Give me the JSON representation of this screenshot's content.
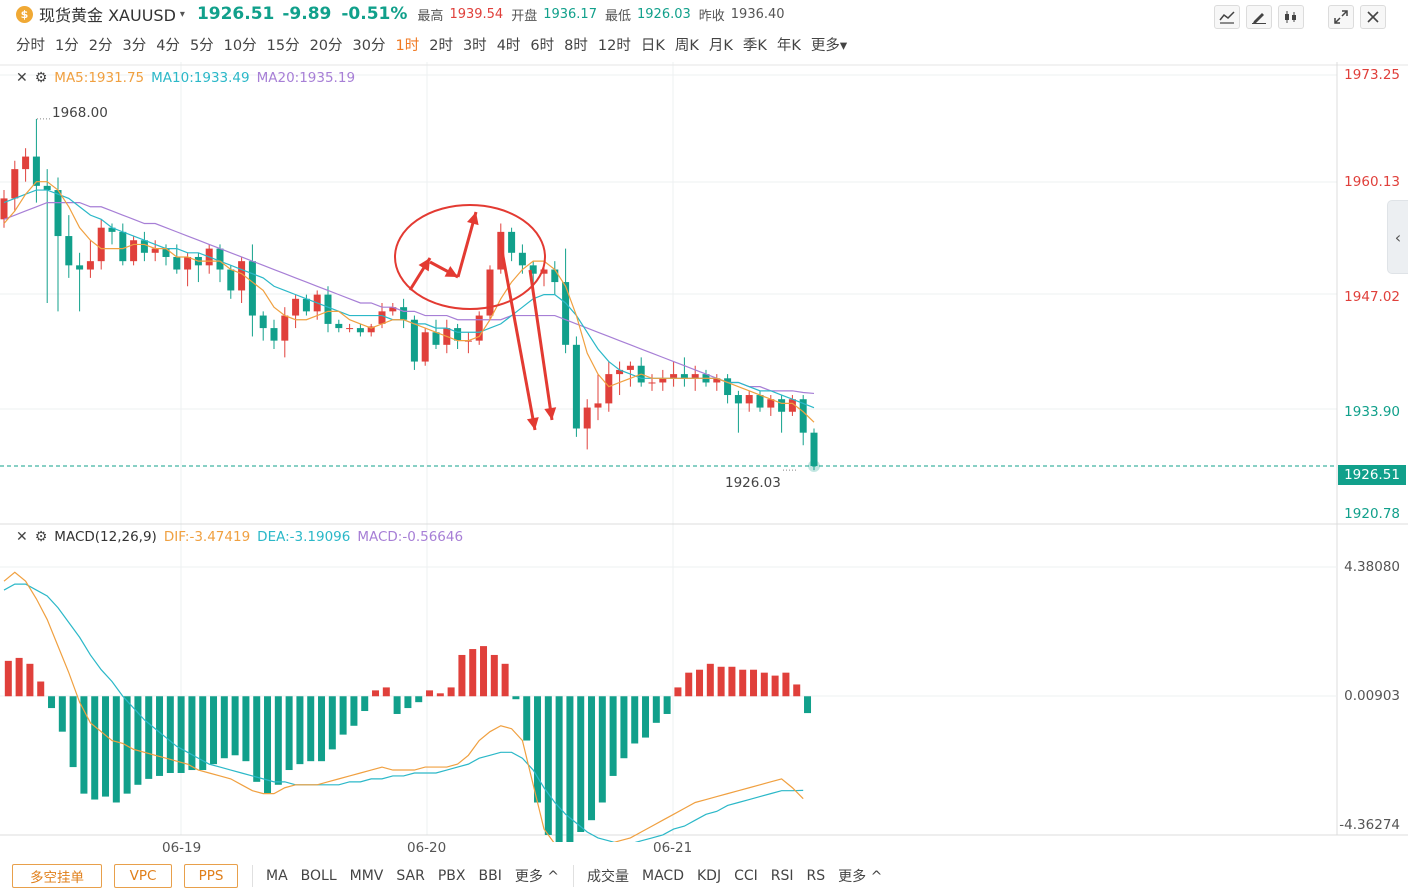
{
  "header": {
    "logo_char": "$",
    "symbol_name": "现货黄金 XAUUSD",
    "caret": "▾",
    "price": "1926.51",
    "change": "-9.89",
    "change_pct": "-0.51%",
    "high_label": "最高",
    "high": "1939.54",
    "open_label": "开盘",
    "open": "1936.17",
    "low_label": "最低",
    "low": "1926.03",
    "prev_close_label": "昨收",
    "prev_close": "1936.40",
    "tools": [
      "line-chart-icon",
      "draw-pen-icon",
      "candlestick-icon",
      "fullscreen-icon",
      "close-icon"
    ]
  },
  "timeframes": [
    "分时",
    "1分",
    "2分",
    "3分",
    "4分",
    "5分",
    "10分",
    "15分",
    "20分",
    "30分",
    "1时",
    "2时",
    "3时",
    "4时",
    "6时",
    "8时",
    "12时",
    "日K",
    "周K",
    "月K",
    "季K",
    "年K",
    "更多▾"
  ],
  "active_timeframe": "1时",
  "main_legend": {
    "ma5": "MA5:1931.75",
    "ma10": "MA10:1933.49",
    "ma20": "MA20:1935.19"
  },
  "macd_legend": {
    "name": "MACD(12,26,9)",
    "dif": "DIF:-3.47419",
    "dea": "DEA:-3.19096",
    "macd": "MACD:-0.56646"
  },
  "price_axis": [
    "1973.25",
    "1960.13",
    "1947.02",
    "1933.90",
    "1920.78"
  ],
  "current_price_tag": "1926.51",
  "macd_axis": [
    "4.38080",
    "0.00903",
    "-4.36274"
  ],
  "max_label": "1968.00",
  "min_label": "1926.03",
  "x_axis": [
    "06-19",
    "06-20",
    "06-21"
  ],
  "bottom": {
    "buttons": [
      "多空挂单",
      "VPC",
      "PPS"
    ],
    "main_indicators": [
      "MA",
      "BOLL",
      "MMV",
      "SAR",
      "PBX",
      "BBI",
      "更多 ^"
    ],
    "sub_indicators": [
      "成交量",
      "MACD",
      "KDJ",
      "CCI",
      "RSI",
      "RS",
      "更多 ^"
    ]
  },
  "colors": {
    "up": "#e0403b",
    "down": "#11a08b",
    "ma5": "#f0a040",
    "ma10": "#2bb8c8",
    "ma20": "#a77fd6",
    "accent": "#f07a23"
  },
  "chart_data": {
    "type": "candlestick",
    "x_labels": [
      "06-19",
      "06-20",
      "06-21"
    ],
    "ylim": [
      1920.78,
      1973.25
    ],
    "candles": [
      {
        "o": 1956.0,
        "h": 1959.5,
        "l": 1955.0,
        "c": 1958.5
      },
      {
        "o": 1958.5,
        "h": 1963.0,
        "l": 1957.0,
        "c": 1962.0
      },
      {
        "o": 1962.0,
        "h": 1964.5,
        "l": 1960.5,
        "c": 1963.5
      },
      {
        "o": 1963.5,
        "h": 1968.0,
        "l": 1958.0,
        "c": 1960.0
      },
      {
        "o": 1960.0,
        "h": 1962.0,
        "l": 1946.0,
        "c": 1959.5
      },
      {
        "o": 1959.5,
        "h": 1961.0,
        "l": 1945.0,
        "c": 1954.0
      },
      {
        "o": 1954.0,
        "h": 1956.5,
        "l": 1949.0,
        "c": 1950.5
      },
      {
        "o": 1950.5,
        "h": 1952.0,
        "l": 1945.0,
        "c": 1950.0
      },
      {
        "o": 1950.0,
        "h": 1953.5,
        "l": 1949.0,
        "c": 1951.0
      },
      {
        "o": 1951.0,
        "h": 1956.0,
        "l": 1950.0,
        "c": 1955.0
      },
      {
        "o": 1955.0,
        "h": 1955.5,
        "l": 1953.0,
        "c": 1954.5
      },
      {
        "o": 1954.5,
        "h": 1955.5,
        "l": 1950.5,
        "c": 1951.0
      },
      {
        "o": 1951.0,
        "h": 1954.0,
        "l": 1950.5,
        "c": 1953.5
      },
      {
        "o": 1953.5,
        "h": 1954.5,
        "l": 1951.0,
        "c": 1952.0
      },
      {
        "o": 1952.0,
        "h": 1953.5,
        "l": 1951.0,
        "c": 1952.5
      },
      {
        "o": 1952.5,
        "h": 1953.0,
        "l": 1950.5,
        "c": 1951.5
      },
      {
        "o": 1951.5,
        "h": 1953.0,
        "l": 1949.5,
        "c": 1950.0
      },
      {
        "o": 1950.0,
        "h": 1952.0,
        "l": 1948.0,
        "c": 1951.5
      },
      {
        "o": 1951.5,
        "h": 1952.0,
        "l": 1948.5,
        "c": 1950.5
      },
      {
        "o": 1950.5,
        "h": 1953.0,
        "l": 1949.5,
        "c": 1952.5
      },
      {
        "o": 1952.5,
        "h": 1953.0,
        "l": 1948.5,
        "c": 1950.0
      },
      {
        "o": 1950.0,
        "h": 1950.5,
        "l": 1946.5,
        "c": 1947.5
      },
      {
        "o": 1947.5,
        "h": 1951.5,
        "l": 1946.0,
        "c": 1951.0
      },
      {
        "o": 1951.0,
        "h": 1953.0,
        "l": 1942.0,
        "c": 1944.5
      },
      {
        "o": 1944.5,
        "h": 1945.0,
        "l": 1941.5,
        "c": 1943.0
      },
      {
        "o": 1943.0,
        "h": 1944.0,
        "l": 1940.5,
        "c": 1941.5
      },
      {
        "o": 1941.5,
        "h": 1945.5,
        "l": 1939.5,
        "c": 1944.5
      },
      {
        "o": 1944.5,
        "h": 1947.0,
        "l": 1943.0,
        "c": 1946.5
      },
      {
        "o": 1946.5,
        "h": 1947.0,
        "l": 1944.5,
        "c": 1945.0
      },
      {
        "o": 1945.0,
        "h": 1947.5,
        "l": 1944.0,
        "c": 1947.0
      },
      {
        "o": 1947.0,
        "h": 1948.0,
        "l": 1942.5,
        "c": 1943.5
      },
      {
        "o": 1943.5,
        "h": 1944.0,
        "l": 1942.5,
        "c": 1943.0
      },
      {
        "o": 1943.0,
        "h": 1943.5,
        "l": 1942.5,
        "c": 1943.0
      },
      {
        "o": 1943.0,
        "h": 1943.5,
        "l": 1942.0,
        "c": 1942.5
      },
      {
        "o": 1942.5,
        "h": 1943.5,
        "l": 1942.0,
        "c": 1943.2
      },
      {
        "o": 1943.5,
        "h": 1946.0,
        "l": 1943.0,
        "c": 1945.0
      },
      {
        "o": 1945.0,
        "h": 1946.0,
        "l": 1944.5,
        "c": 1945.5
      },
      {
        "o": 1945.5,
        "h": 1946.5,
        "l": 1943.0,
        "c": 1944.0
      },
      {
        "o": 1944.0,
        "h": 1944.5,
        "l": 1938.0,
        "c": 1939.0
      },
      {
        "o": 1939.0,
        "h": 1943.0,
        "l": 1938.5,
        "c": 1942.5
      },
      {
        "o": 1942.5,
        "h": 1944.0,
        "l": 1940.5,
        "c": 1941.0
      },
      {
        "o": 1941.0,
        "h": 1944.0,
        "l": 1940.0,
        "c": 1943.0
      },
      {
        "o": 1943.0,
        "h": 1943.5,
        "l": 1940.5,
        "c": 1941.5
      },
      {
        "o": 1941.5,
        "h": 1942.5,
        "l": 1940.0,
        "c": 1941.5
      },
      {
        "o": 1941.5,
        "h": 1945.0,
        "l": 1941.0,
        "c": 1944.5
      },
      {
        "o": 1944.5,
        "h": 1950.5,
        "l": 1944.0,
        "c": 1950.0
      },
      {
        "o": 1950.0,
        "h": 1955.5,
        "l": 1949.5,
        "c": 1954.5
      },
      {
        "o": 1954.5,
        "h": 1955.0,
        "l": 1951.0,
        "c": 1952.0
      },
      {
        "o": 1952.0,
        "h": 1953.0,
        "l": 1949.5,
        "c": 1950.5
      },
      {
        "o": 1950.5,
        "h": 1951.0,
        "l": 1947.5,
        "c": 1949.5
      },
      {
        "o": 1949.5,
        "h": 1951.0,
        "l": 1948.0,
        "c": 1950.0
      },
      {
        "o": 1950.0,
        "h": 1951.0,
        "l": 1947.0,
        "c": 1948.5
      },
      {
        "o": 1948.5,
        "h": 1952.5,
        "l": 1940.0,
        "c": 1941.0
      },
      {
        "o": 1941.0,
        "h": 1942.0,
        "l": 1930.0,
        "c": 1931.0
      },
      {
        "o": 1931.0,
        "h": 1934.5,
        "l": 1928.5,
        "c": 1933.5
      },
      {
        "o": 1933.5,
        "h": 1937.5,
        "l": 1932.0,
        "c": 1934.0
      },
      {
        "o": 1934.0,
        "h": 1939.0,
        "l": 1933.0,
        "c": 1937.5
      },
      {
        "o": 1937.5,
        "h": 1939.0,
        "l": 1935.0,
        "c": 1938.0
      },
      {
        "o": 1938.0,
        "h": 1939.0,
        "l": 1936.0,
        "c": 1938.5
      },
      {
        "o": 1938.5,
        "h": 1939.5,
        "l": 1936.0,
        "c": 1936.5
      },
      {
        "o": 1936.5,
        "h": 1937.5,
        "l": 1935.5,
        "c": 1936.5
      },
      {
        "o": 1936.5,
        "h": 1938.0,
        "l": 1935.5,
        "c": 1937.0
      },
      {
        "o": 1937.0,
        "h": 1939.0,
        "l": 1936.0,
        "c": 1937.5
      },
      {
        "o": 1937.5,
        "h": 1939.5,
        "l": 1936.0,
        "c": 1937.0
      },
      {
        "o": 1937.0,
        "h": 1938.5,
        "l": 1935.5,
        "c": 1937.5
      },
      {
        "o": 1937.5,
        "h": 1938.0,
        "l": 1936.0,
        "c": 1936.5
      },
      {
        "o": 1936.5,
        "h": 1937.5,
        "l": 1935.5,
        "c": 1937.0
      },
      {
        "o": 1937.0,
        "h": 1937.5,
        "l": 1934.0,
        "c": 1935.0
      },
      {
        "o": 1935.0,
        "h": 1935.5,
        "l": 1930.5,
        "c": 1934.0
      },
      {
        "o": 1934.0,
        "h": 1935.5,
        "l": 1933.0,
        "c": 1935.0
      },
      {
        "o": 1935.0,
        "h": 1935.5,
        "l": 1933.0,
        "c": 1933.5
      },
      {
        "o": 1933.5,
        "h": 1935.0,
        "l": 1932.5,
        "c": 1934.5
      },
      {
        "o": 1934.5,
        "h": 1935.0,
        "l": 1930.5,
        "c": 1933.0
      },
      {
        "o": 1933.0,
        "h": 1935.0,
        "l": 1932.5,
        "c": 1934.5
      },
      {
        "o": 1934.5,
        "h": 1935.0,
        "l": 1929.0,
        "c": 1930.5
      },
      {
        "o": 1930.5,
        "h": 1931.0,
        "l": 1926.03,
        "c": 1926.51
      }
    ],
    "ma5": [
      1955.5,
      1957.0,
      1959.0,
      1960.5,
      1960.5,
      1959.5,
      1957.5,
      1955.0,
      1953.5,
      1952.5,
      1952.5,
      1952.5,
      1953.0,
      1953.0,
      1952.5,
      1952.5,
      1951.5,
      1951.5,
      1951.0,
      1951.0,
      1951.0,
      1950.0,
      1949.5,
      1948.5,
      1947.5,
      1945.5,
      1944.5,
      1944.0,
      1944.0,
      1944.5,
      1945.0,
      1945.0,
      1944.0,
      1943.5,
      1943.0,
      1943.5,
      1944.0,
      1944.0,
      1943.5,
      1943.0,
      1942.5,
      1942.0,
      1941.5,
      1941.5,
      1942.0,
      1944.0,
      1946.5,
      1948.5,
      1950.0,
      1951.0,
      1951.0,
      1950.0,
      1948.0,
      1944.5,
      1940.0,
      1937.5,
      1936.0,
      1936.5,
      1937.0,
      1937.5,
      1937.0,
      1937.0,
      1937.0,
      1937.0,
      1937.0,
      1937.0,
      1937.0,
      1936.5,
      1936.0,
      1935.5,
      1935.0,
      1934.5,
      1934.0,
      1934.0,
      1933.0,
      1931.75
    ],
    "ma10": [
      1958.0,
      1958.5,
      1959.0,
      1959.5,
      1959.5,
      1959.0,
      1958.5,
      1957.5,
      1956.5,
      1956.0,
      1955.0,
      1954.5,
      1954.0,
      1953.5,
      1953.0,
      1952.5,
      1952.5,
      1952.0,
      1952.0,
      1951.5,
      1951.0,
      1950.5,
      1950.0,
      1949.5,
      1949.0,
      1948.0,
      1947.5,
      1947.0,
      1946.5,
      1946.0,
      1945.5,
      1945.0,
      1944.5,
      1944.5,
      1944.5,
      1944.5,
      1944.0,
      1944.0,
      1943.5,
      1943.5,
      1943.0,
      1943.0,
      1942.5,
      1942.5,
      1942.5,
      1943.0,
      1943.5,
      1944.5,
      1945.5,
      1946.5,
      1947.0,
      1947.0,
      1946.0,
      1944.5,
      1942.5,
      1940.5,
      1939.0,
      1938.0,
      1937.5,
      1937.0,
      1937.0,
      1937.0,
      1937.0,
      1937.0,
      1937.0,
      1937.0,
      1937.0,
      1936.5,
      1936.5,
      1936.0,
      1935.5,
      1935.5,
      1935.0,
      1934.5,
      1934.0,
      1933.49
    ],
    "ma20": [
      1956.0,
      1956.5,
      1957.0,
      1957.5,
      1958.0,
      1958.0,
      1958.0,
      1958.0,
      1957.5,
      1957.5,
      1957.0,
      1956.5,
      1956.0,
      1955.5,
      1955.5,
      1955.0,
      1954.5,
      1954.0,
      1953.5,
      1953.0,
      1952.5,
      1952.0,
      1951.5,
      1951.0,
      1950.5,
      1950.0,
      1949.5,
      1949.0,
      1948.5,
      1948.0,
      1947.5,
      1947.0,
      1946.5,
      1946.0,
      1946.0,
      1945.5,
      1945.5,
      1945.0,
      1945.0,
      1944.5,
      1944.5,
      1944.5,
      1944.0,
      1944.0,
      1944.0,
      1944.0,
      1944.0,
      1944.5,
      1944.5,
      1944.5,
      1944.5,
      1944.5,
      1944.0,
      1943.5,
      1943.0,
      1942.5,
      1942.0,
      1941.5,
      1941.0,
      1940.5,
      1940.0,
      1939.5,
      1939.0,
      1938.5,
      1938.0,
      1937.5,
      1937.0,
      1936.5,
      1936.5,
      1936.0,
      1936.0,
      1935.5,
      1935.5,
      1935.5,
      1935.3,
      1935.19
    ],
    "macd_hist": [
      1.2,
      1.3,
      1.1,
      0.5,
      -0.4,
      -1.2,
      -2.4,
      -3.3,
      -3.5,
      -3.4,
      -3.6,
      -3.3,
      -3.0,
      -2.8,
      -2.7,
      -2.6,
      -2.6,
      -2.5,
      -2.5,
      -2.3,
      -2.1,
      -2.0,
      -2.2,
      -2.9,
      -3.3,
      -3.0,
      -2.5,
      -2.3,
      -2.2,
      -2.2,
      -1.8,
      -1.3,
      -1.0,
      -0.5,
      0.2,
      0.3,
      -0.6,
      -0.4,
      -0.2,
      0.2,
      0.1,
      0.3,
      1.4,
      1.6,
      1.7,
      1.4,
      1.1,
      -0.1,
      -1.5,
      -3.6,
      -4.7,
      -5.4,
      -5.1,
      -4.6,
      -4.2,
      -3.6,
      -2.7,
      -2.1,
      -1.6,
      -1.4,
      -0.9,
      -0.6,
      0.3,
      0.8,
      0.9,
      1.1,
      1.0,
      1.0,
      0.9,
      0.9,
      0.8,
      0.7,
      0.8,
      0.4,
      -0.57
    ],
    "dif": [
      3.9,
      4.2,
      3.9,
      3.3,
      2.6,
      1.7,
      0.8,
      -0.2,
      -0.9,
      -1.2,
      -1.5,
      -1.6,
      -1.8,
      -1.9,
      -2.0,
      -2.1,
      -2.2,
      -2.3,
      -2.5,
      -2.6,
      -2.7,
      -2.8,
      -3.0,
      -3.2,
      -3.3,
      -3.3,
      -3.1,
      -3.0,
      -3.0,
      -3.0,
      -2.9,
      -2.8,
      -2.7,
      -2.6,
      -2.5,
      -2.4,
      -2.5,
      -2.5,
      -2.5,
      -2.4,
      -2.4,
      -2.4,
      -2.3,
      -2.0,
      -1.5,
      -1.2,
      -1.0,
      -1.1,
      -1.5,
      -3.0,
      -4.5,
      -5.0,
      -5.2,
      -5.3,
      -5.3,
      -5.2,
      -5.0,
      -4.9,
      -4.8,
      -4.6,
      -4.4,
      -4.2,
      -4.0,
      -3.8,
      -3.6,
      -3.5,
      -3.4,
      -3.3,
      -3.2,
      -3.1,
      -3.0,
      -2.9,
      -2.8,
      -3.1,
      -3.47
    ],
    "dea": [
      3.6,
      3.8,
      3.8,
      3.6,
      3.4,
      3.0,
      2.5,
      2.0,
      1.4,
      0.9,
      0.5,
      0.0,
      -0.4,
      -0.8,
      -1.1,
      -1.4,
      -1.7,
      -1.9,
      -2.1,
      -2.3,
      -2.4,
      -2.5,
      -2.6,
      -2.7,
      -2.8,
      -2.9,
      -2.9,
      -3.0,
      -3.0,
      -3.0,
      -3.0,
      -3.0,
      -2.9,
      -2.9,
      -2.8,
      -2.8,
      -2.7,
      -2.7,
      -2.6,
      -2.6,
      -2.6,
      -2.5,
      -2.4,
      -2.3,
      -2.1,
      -2.0,
      -1.9,
      -1.9,
      -2.1,
      -2.5,
      -3.1,
      -3.6,
      -4.0,
      -4.3,
      -4.6,
      -4.8,
      -4.9,
      -5.0,
      -5.0,
      -4.9,
      -4.8,
      -4.7,
      -4.5,
      -4.4,
      -4.2,
      -4.0,
      -3.9,
      -3.7,
      -3.6,
      -3.5,
      -3.4,
      -3.3,
      -3.2,
      -3.2,
      -3.19
    ]
  }
}
